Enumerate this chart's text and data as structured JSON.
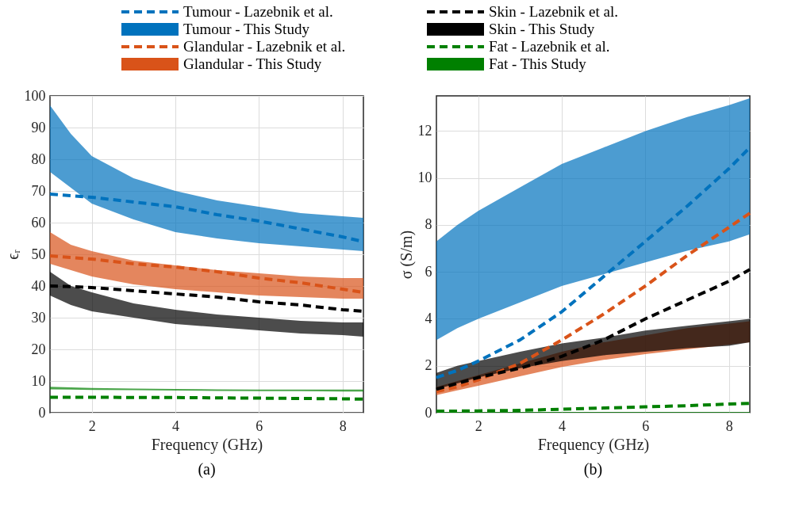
{
  "chart_data": [
    {
      "type": "line",
      "xlabel": "Frequency (GHz)",
      "ylabel": "ϵᵣ",
      "annotations": [
        "(a)"
      ],
      "xlim": [
        1,
        8.5
      ],
      "xticks": [
        2,
        4,
        6,
        8
      ],
      "ylim": [
        0,
        100
      ],
      "yticks": [
        0,
        10,
        20,
        30,
        40,
        50,
        60,
        70,
        80,
        90,
        100
      ],
      "grid": true,
      "legend": "top",
      "line_style": "dashed",
      "x": [
        1,
        1.5,
        2,
        3,
        4,
        5,
        6,
        7,
        8,
        8.5
      ],
      "series": [
        {
          "name": "Tumour - Lazebnik et al.",
          "color": "#0072bd",
          "values": [
            69,
            68.5,
            68,
            66.5,
            65,
            62.5,
            60.5,
            58,
            55.5,
            54
          ]
        },
        {
          "name": "Tumour - This Study",
          "color": "#0072bd",
          "values": [
            null,
            null,
            null,
            null,
            null,
            null,
            null,
            null,
            null,
            null
          ],
          "upper": [
            97,
            88,
            81,
            74,
            70,
            67,
            65,
            63,
            62,
            61.5
          ],
          "lower": [
            76,
            71,
            66,
            61,
            57,
            55,
            53.5,
            52.5,
            51.5,
            51
          ]
        },
        {
          "name": "Glandular - Lazebnik et al.",
          "color": "#d95319",
          "values": [
            49.5,
            49,
            48.5,
            47,
            46,
            44.5,
            42.5,
            41,
            39,
            38
          ]
        },
        {
          "name": "Glandular - This Study",
          "color": "#d95319",
          "values": [
            null,
            null,
            null,
            null,
            null,
            null,
            null,
            null,
            null,
            null
          ],
          "upper": [
            57,
            53,
            51,
            48,
            46.5,
            45,
            44,
            43,
            42.5,
            42.5
          ],
          "lower": [
            47,
            45,
            43,
            40.5,
            39,
            38,
            37,
            36.5,
            36,
            36
          ]
        },
        {
          "name": "Skin - Lazebnik et al.",
          "color": "#000000",
          "values": [
            40,
            39.8,
            39.5,
            38.5,
            37.5,
            36.5,
            35,
            34,
            32.5,
            32
          ]
        },
        {
          "name": "Skin - This Study",
          "color": "#000000",
          "values": [
            null,
            null,
            null,
            null,
            null,
            null,
            null,
            null,
            null,
            null
          ],
          "upper": [
            44.5,
            40,
            38,
            34.5,
            32.5,
            31,
            30,
            29,
            28.5,
            28.5
          ],
          "lower": [
            37,
            34,
            32,
            30,
            28,
            27,
            26,
            25,
            24.5,
            24
          ]
        },
        {
          "name": "Fat - Lazebnik et al.",
          "color": "#008000",
          "values": [
            4.9,
            4.9,
            4.9,
            4.8,
            4.8,
            4.7,
            4.6,
            4.5,
            4.4,
            4.3
          ]
        },
        {
          "name": "Fat - This Study",
          "color": "#008000",
          "values": [
            null,
            null,
            null,
            null,
            null,
            null,
            null,
            null,
            null,
            null
          ],
          "upper": [
            8.2,
            8,
            7.8,
            7.6,
            7.5,
            7.4,
            7.3,
            7.3,
            7.3,
            7.3
          ],
          "lower": [
            7.4,
            7.3,
            7.2,
            7.1,
            7,
            6.9,
            6.8,
            6.8,
            6.7,
            6.7
          ]
        }
      ]
    },
    {
      "type": "line",
      "xlabel": "Frequency (GHz)",
      "ylabel": "σ (S/m)",
      "annotations": [
        "(b)"
      ],
      "xlim": [
        1,
        8.5
      ],
      "xticks": [
        2,
        4,
        6,
        8
      ],
      "ylim": [
        0,
        13.5
      ],
      "yticks": [
        0,
        2,
        4,
        6,
        8,
        10,
        12
      ],
      "grid": true,
      "line_style": "dashed",
      "x": [
        1,
        1.5,
        2,
        3,
        4,
        5,
        6,
        7,
        8,
        8.5
      ],
      "series": [
        {
          "color": "#0072bd",
          "values": [
            1.5,
            1.8,
            2.2,
            3.1,
            4.3,
            5.8,
            7.3,
            8.8,
            10.4,
            11.3
          ]
        },
        {
          "color": "#0072bd",
          "values": [
            null,
            null,
            null,
            null,
            null,
            null,
            null,
            null,
            null,
            null
          ],
          "upper": [
            7.3,
            8,
            8.6,
            9.6,
            10.6,
            11.3,
            12,
            12.6,
            13.1,
            13.4
          ],
          "lower": [
            3.1,
            3.6,
            4,
            4.7,
            5.4,
            5.9,
            6.4,
            6.9,
            7.3,
            7.6
          ]
        },
        {
          "color": "#d95319",
          "values": [
            0.9,
            1.1,
            1.4,
            2.1,
            3.1,
            4.2,
            5.4,
            6.7,
            7.9,
            8.5
          ]
        },
        {
          "color": "#d95319",
          "values": [
            null,
            null,
            null,
            null,
            null,
            null,
            null,
            null,
            null,
            null
          ],
          "upper": [
            1.1,
            1.35,
            1.6,
            2.1,
            2.6,
            3,
            3.3,
            3.6,
            3.8,
            3.9
          ],
          "lower": [
            0.75,
            0.95,
            1.15,
            1.55,
            1.95,
            2.25,
            2.5,
            2.7,
            2.9,
            3
          ]
        },
        {
          "color": "#000000",
          "values": [
            1,
            1.25,
            1.5,
            1.9,
            2.4,
            3.1,
            4,
            4.8,
            5.6,
            6.1
          ]
        },
        {
          "color": "#000000",
          "values": [
            null,
            null,
            null,
            null,
            null,
            null,
            null,
            null,
            null,
            null
          ],
          "upper": [
            1.7,
            2,
            2.2,
            2.6,
            2.95,
            3.2,
            3.5,
            3.7,
            3.9,
            4
          ],
          "lower": [
            1,
            1.25,
            1.5,
            1.9,
            2.2,
            2.45,
            2.6,
            2.75,
            2.85,
            3
          ]
        },
        {
          "color": "#008000",
          "values": [
            0.07,
            0.07,
            0.08,
            0.1,
            0.15,
            0.2,
            0.25,
            0.3,
            0.37,
            0.4
          ]
        },
        {
          "color": "#008000",
          "values": [
            null,
            null,
            null,
            null,
            null,
            null,
            null,
            null,
            null,
            null
          ],
          "upper": [
            0.03,
            0.03,
            0.03,
            0.03,
            0.03,
            0.03,
            0.03,
            0.03,
            0.03,
            0.03
          ],
          "lower": [
            0,
            0,
            0,
            0,
            0,
            0,
            0,
            0,
            0,
            0
          ]
        }
      ]
    }
  ]
}
